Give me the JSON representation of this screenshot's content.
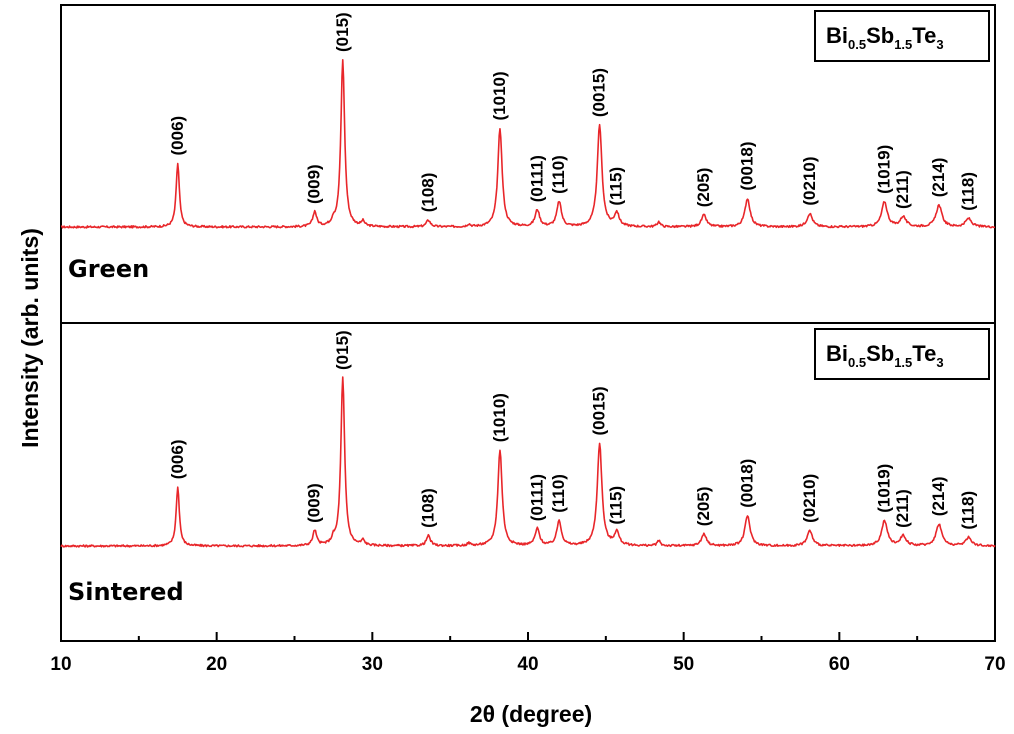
{
  "chart_data": {
    "type": "line",
    "xlabel": "2θ (degree)",
    "ylabel": "Intensity (arb. units)",
    "xlim": [
      10,
      70
    ],
    "xticks": [
      "10",
      "20",
      "30",
      "40",
      "50",
      "60",
      "70"
    ],
    "grid": false,
    "line_color": "#e8262a",
    "peaks": [
      {
        "hkl": "(006)",
        "x": 17.5
      },
      {
        "hkl": "(009)",
        "x": 26.3
      },
      {
        "hkl": "(015)",
        "x": 28.1
      },
      {
        "hkl": "(108)",
        "x": 33.6
      },
      {
        "hkl": "(1010)",
        "x": 38.2
      },
      {
        "hkl": "(0111)",
        "x": 40.6
      },
      {
        "hkl": "(110)",
        "x": 42.0
      },
      {
        "hkl": "(0015)",
        "x": 44.6
      },
      {
        "hkl": "(115)",
        "x": 45.7
      },
      {
        "hkl": "(205)",
        "x": 51.3
      },
      {
        "hkl": "(0018)",
        "x": 54.1
      },
      {
        "hkl": "(0210)",
        "x": 58.1
      },
      {
        "hkl": "(1019)",
        "x": 62.9
      },
      {
        "hkl": "(211)",
        "x": 64.1
      },
      {
        "hkl": "(214)",
        "x": 66.4
      },
      {
        "hkl": "(118)",
        "x": 68.3
      }
    ],
    "panels": [
      {
        "name": "Green",
        "formula": {
          "p1": "Bi",
          "s1": "0.5",
          "p2": "Sb",
          "s2": "1.5",
          "p3": "Te",
          "s3": "3"
        },
        "intensities": [
          0.38,
          0.09,
          1.0,
          0.04,
          0.59,
          0.1,
          0.15,
          0.61,
          0.08,
          0.07,
          0.17,
          0.08,
          0.15,
          0.06,
          0.13,
          0.05
        ]
      },
      {
        "name": "Sintered",
        "formula": {
          "p1": "Bi",
          "s1": "0.5",
          "p2": "Sb",
          "s2": "1.5",
          "p3": "Te",
          "s3": "3"
        },
        "intensities": [
          0.35,
          0.09,
          1.0,
          0.06,
          0.57,
          0.1,
          0.15,
          0.61,
          0.08,
          0.07,
          0.18,
          0.09,
          0.15,
          0.06,
          0.13,
          0.05
        ]
      }
    ]
  }
}
